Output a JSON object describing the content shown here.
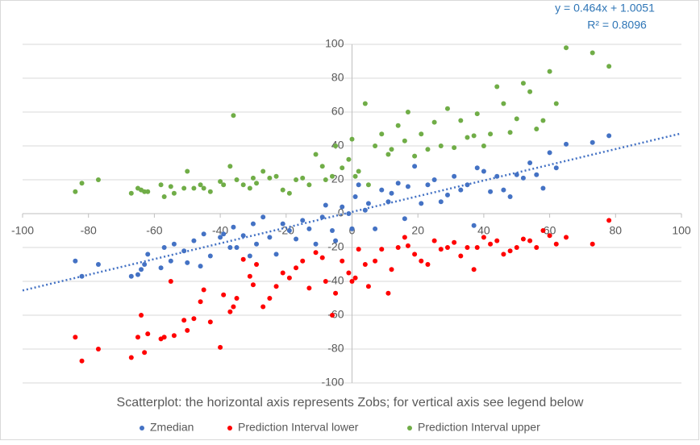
{
  "chart_data": {
    "type": "scatter",
    "x_title": "Scatterplot: the horizontal axis represents Zobs; for vertical axis see legend below",
    "x": [
      -84,
      -82,
      -77,
      -67,
      -65,
      -64,
      -63,
      -62,
      -58,
      -57,
      -55,
      -54,
      -51,
      -50,
      -48,
      -46,
      -45,
      -43,
      -40,
      -39,
      -37,
      -36,
      -35,
      -33,
      -31,
      -30,
      -29,
      -27,
      -25,
      -23,
      -21,
      -19,
      -17,
      -15,
      -13,
      -11,
      -9,
      -8,
      -6,
      -5,
      -3,
      -1,
      0,
      1,
      2,
      4,
      5,
      7,
      9,
      11,
      12,
      14,
      16,
      17,
      19,
      21,
      23,
      25,
      27,
      29,
      31,
      33,
      35,
      37,
      38,
      40,
      42,
      44,
      46,
      48,
      50,
      52,
      54,
      56,
      58,
      60,
      62,
      65,
      73,
      78
    ],
    "series": [
      {
        "name": "Zmedian",
        "color": "#4472c4",
        "values": [
          -28,
          -37,
          -30,
          -37,
          -36,
          -33,
          -30,
          -24,
          -32,
          -20,
          -28,
          -18,
          -22,
          -29,
          -16,
          -31,
          -12,
          -25,
          -14,
          -12,
          -20,
          -8,
          -20,
          -13,
          -25,
          -6,
          -18,
          -2,
          -14,
          -24,
          -6,
          -10,
          -15,
          -4,
          -9,
          -18,
          -2,
          5,
          -10,
          -16,
          4,
          0,
          -9,
          10,
          17,
          2,
          6,
          -9,
          14,
          7,
          12,
          18,
          -3,
          16,
          28,
          6,
          17,
          20,
          7,
          11,
          22,
          14,
          17,
          -7,
          27,
          25,
          13,
          22,
          14,
          10,
          23,
          21,
          30,
          23,
          15,
          36,
          27,
          41,
          42,
          46
        ]
      },
      {
        "name": "Prediction Interval lower",
        "color": "#ff0000",
        "values": [
          -73,
          -87,
          -80,
          -85,
          -73,
          -60,
          -82,
          -71,
          -74,
          -73,
          -40,
          -72,
          -63,
          -69,
          -62,
          -52,
          -45,
          -64,
          -79,
          -48,
          -58,
          -55,
          -50,
          -27,
          -37,
          -42,
          -30,
          -55,
          -50,
          -43,
          -35,
          -38,
          -32,
          -28,
          -44,
          -23,
          -26,
          -40,
          -60,
          -47,
          -28,
          -35,
          -40,
          -38,
          -21,
          -30,
          -43,
          -28,
          -21,
          -47,
          -33,
          -20,
          -14,
          -19,
          -24,
          -28,
          -30,
          -16,
          -21,
          -20,
          -17,
          -25,
          -20,
          -33,
          -20,
          -14,
          -18,
          -16,
          -24,
          -22,
          -20,
          -15,
          -16,
          -20,
          -10,
          -13,
          -18,
          -14,
          -18,
          -4
        ]
      },
      {
        "name": "Prediction Interval upper",
        "color": "#70ad47",
        "values": [
          13,
          18,
          20,
          12,
          15,
          14,
          13,
          13,
          17,
          10,
          16,
          12,
          15,
          25,
          15,
          17,
          15,
          13,
          19,
          17,
          28,
          58,
          20,
          17,
          15,
          21,
          18,
          25,
          21,
          22,
          14,
          12,
          20,
          21,
          17,
          35,
          28,
          20,
          22,
          40,
          27,
          32,
          44,
          22,
          25,
          65,
          17,
          40,
          47,
          35,
          38,
          52,
          43,
          60,
          34,
          47,
          38,
          54,
          40,
          62,
          39,
          55,
          45,
          46,
          59,
          40,
          47,
          75,
          65,
          48,
          56,
          77,
          72,
          50,
          55,
          84,
          65,
          98,
          95,
          87
        ]
      }
    ],
    "xlim": [
      -100,
      100
    ],
    "xticks": [
      -100,
      -80,
      -60,
      -40,
      -20,
      0,
      20,
      40,
      60,
      80,
      100
    ],
    "ylim": [
      -100,
      100
    ],
    "yticks": [
      -100,
      -80,
      -60,
      -40,
      -20,
      0,
      20,
      40,
      60,
      80,
      100
    ],
    "grid": true,
    "trendline": {
      "slope": 0.464,
      "intercept": 1.0051,
      "label": "y = 0.464x + 1.0051",
      "r2_label": "R² = 0.8096"
    },
    "legend": "bottom"
  }
}
